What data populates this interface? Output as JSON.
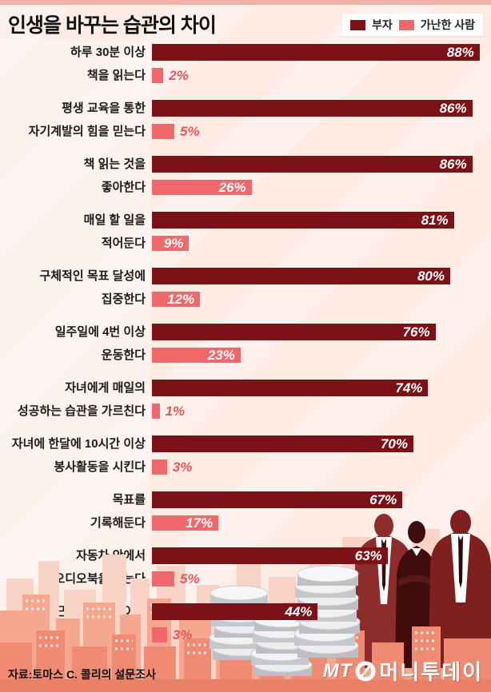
{
  "title": "인생을 바꾸는 습관의 차이",
  "legend": {
    "rich_label": "부자",
    "poor_label": "가난한 사람"
  },
  "colors": {
    "rich_bar": "#7c1117",
    "poor_bar": "#f0686c",
    "outside_label": "#e4575c",
    "background": "#fdebe4",
    "skyline_front": "#ee8b72",
    "skyline_mid": "#f4a88f",
    "skyline_back": "#f9d3c6"
  },
  "chart_data": {
    "type": "bar",
    "orientation": "horizontal",
    "title": "인생을 바꾸는 습관의 차이",
    "value_suffix": "%",
    "xlim": [
      0,
      100
    ],
    "legend_position": "top-right",
    "categories": [
      "하루 30분 이상\n책을 읽는다",
      "평생 교육을 통한\n자기계발의 힘을 믿는다",
      "책 읽는 것을\n좋아한다",
      "매일 할 일을\n적어둔다",
      "구체적인 목표 달성에\n집중한다",
      "일주일에 4번 이상\n운동한다",
      "자녀에게 매일의\n성공하는 습관을 가르친다",
      "자녀에 한달에 10시간 이상\n봉사활동을 시킨다",
      "목표를\n기록해둔다",
      "자동차 안에서\n오디오북을 듣는다",
      "출근하기 3시간 이상\n전에 일어난다"
    ],
    "series": [
      {
        "name": "부자",
        "values": [
          88,
          86,
          86,
          81,
          80,
          76,
          74,
          70,
          67,
          63,
          44
        ]
      },
      {
        "name": "가난한 사람",
        "values": [
          2,
          5,
          26,
          9,
          12,
          23,
          1,
          3,
          17,
          5,
          3
        ]
      }
    ]
  },
  "source": "자료:토마스 C. 콜리의 설문조사",
  "logo": {
    "mt": "MT",
    "brand": "머니투데이"
  }
}
